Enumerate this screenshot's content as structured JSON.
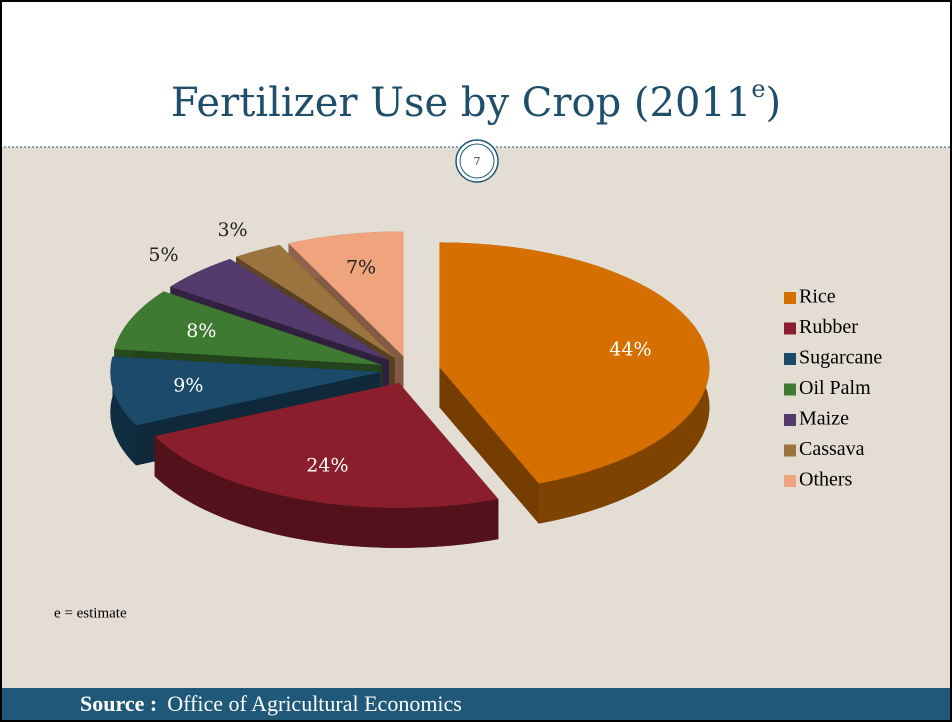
{
  "chart_data": {
    "type": "pie3d",
    "title_parts": [
      "Fertilizer Use by Crop (2011",
      "e",
      ")"
    ],
    "categories": [
      "Rice",
      "Rubber",
      "Sugarcane",
      "Oil Palm",
      "Maize",
      "Cassava",
      "Others"
    ],
    "values": [
      44,
      24,
      9,
      8,
      5,
      3,
      7
    ],
    "value_labels": [
      "44%",
      "24%",
      "9%",
      "8%",
      "5%",
      "3%",
      "7%"
    ],
    "colors": [
      "#d46f00",
      "#8b1e2d",
      "#1b4a6b",
      "#3f7a33",
      "#553a6e",
      "#9c7440",
      "#f0a47e"
    ],
    "legend": "right",
    "note": "e = estimate"
  },
  "slide": {
    "page_number": "7",
    "source_label": "Source :",
    "source": "Office of Agricultural Economics"
  }
}
